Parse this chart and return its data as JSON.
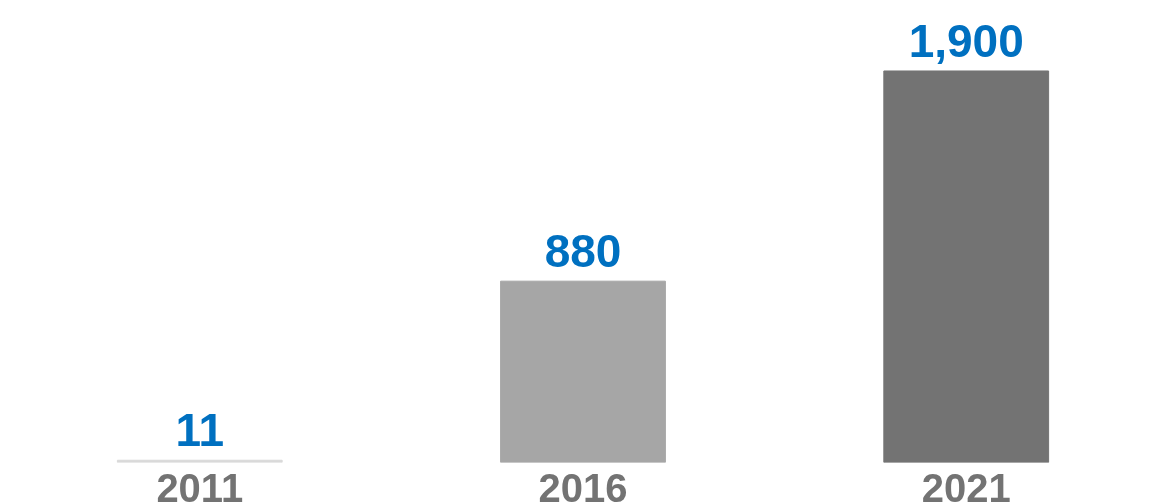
{
  "chart_data": {
    "type": "bar",
    "categories": [
      "2011",
      "2016",
      "2021"
    ],
    "values": [
      11,
      880,
      1900
    ],
    "colors": [
      "#d9d9d9",
      "#a6a6a6",
      "#737373"
    ],
    "value_labels": [
      "11",
      "880",
      "1,900"
    ]
  }
}
